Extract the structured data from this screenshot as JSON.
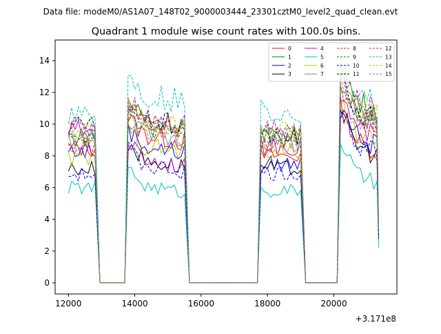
{
  "chart_data": {
    "type": "line",
    "suptitle": "Data file: modeM0/AS1A07_148T02_9000003444_23301cztM0_level2_quad_clean.evt",
    "title": "Quadrant 1 module wise count rates with 100.0s bins.",
    "xlabel": "",
    "ylabel": "",
    "x_offset_label": "+3.171e8",
    "x_offset": 317100000,
    "xlim": [
      11600,
      21900
    ],
    "ylim": [
      -0.7,
      15.3
    ],
    "x_ticks": [
      12000,
      14000,
      16000,
      18000,
      20000
    ],
    "x_tick_labels": [
      "12000",
      "14000",
      "16000",
      "18000",
      "20000"
    ],
    "y_ticks": [
      0,
      2,
      4,
      6,
      8,
      10,
      12,
      14
    ],
    "y_tick_labels": [
      "0",
      "2",
      "4",
      "6",
      "8",
      "10",
      "12",
      "14"
    ],
    "legend_position": "upper right",
    "legend_columns": 4,
    "segments": [
      [
        12000,
        12800
      ],
      [
        13800,
        15500
      ],
      [
        17800,
        19000
      ],
      [
        20200,
        21300
      ]
    ],
    "gap_points": [
      [
        12950,
        0
      ],
      [
        13050,
        0
      ],
      [
        13700,
        0
      ],
      [
        15650,
        0
      ],
      [
        17700,
        0
      ],
      [
        19150,
        0
      ],
      [
        20100,
        0
      ]
    ],
    "series": [
      {
        "name": "0",
        "color": "#ff0000",
        "dash": false,
        "levels": [
          8.5,
          9.5,
          8.0,
          9.5
        ]
      },
      {
        "name": "1",
        "color": "#008000",
        "dash": false,
        "levels": [
          9.2,
          10.6,
          9.2,
          12.0
        ]
      },
      {
        "name": "2",
        "color": "#0000ff",
        "dash": false,
        "levels": [
          8.3,
          8.8,
          7.5,
          9.8
        ]
      },
      {
        "name": "3",
        "color": "#000000",
        "dash": false,
        "levels": [
          7.2,
          7.9,
          7.2,
          9.2
        ]
      },
      {
        "name": "4",
        "color": "#bf00bf",
        "dash": false,
        "levels": [
          9.6,
          8.0,
          8.6,
          10.3
        ]
      },
      {
        "name": "5",
        "color": "#00bfbf",
        "dash": false,
        "levels": [
          6.0,
          6.3,
          5.8,
          7.4
        ]
      },
      {
        "name": "6",
        "color": "#bfbf00",
        "dash": false,
        "levels": [
          7.8,
          8.8,
          8.3,
          9.9
        ]
      },
      {
        "name": "7",
        "color": "#808080",
        "dash": false,
        "levels": [
          9.0,
          9.6,
          8.8,
          10.9
        ]
      },
      {
        "name": "8",
        "color": "#ff0000",
        "dash": true,
        "levels": [
          8.6,
          10.2,
          8.9,
          11.0
        ]
      },
      {
        "name": "9",
        "color": "#008000",
        "dash": true,
        "levels": [
          9.4,
          10.1,
          9.4,
          11.4
        ]
      },
      {
        "name": "10",
        "color": "#0000ff",
        "dash": true,
        "levels": [
          6.8,
          7.6,
          6.9,
          9.3
        ]
      },
      {
        "name": "11",
        "color": "#000000",
        "dash": true,
        "levels": [
          9.8,
          10.4,
          9.2,
          11.3
        ]
      },
      {
        "name": "12",
        "color": "#bf00bf",
        "dash": true,
        "levels": [
          9.9,
          10.7,
          9.9,
          11.9
        ]
      },
      {
        "name": "13",
        "color": "#00bfbf",
        "dash": true,
        "levels": [
          10.8,
          12.0,
          10.8,
          12.4
        ]
      },
      {
        "name": "14",
        "color": "#bfbf00",
        "dash": true,
        "levels": [
          9.6,
          10.3,
          9.6,
          11.7
        ]
      },
      {
        "name": "15",
        "color": "#808080",
        "dash": true,
        "levels": [
          9.2,
          9.8,
          9.0,
          11.0
        ]
      }
    ]
  }
}
